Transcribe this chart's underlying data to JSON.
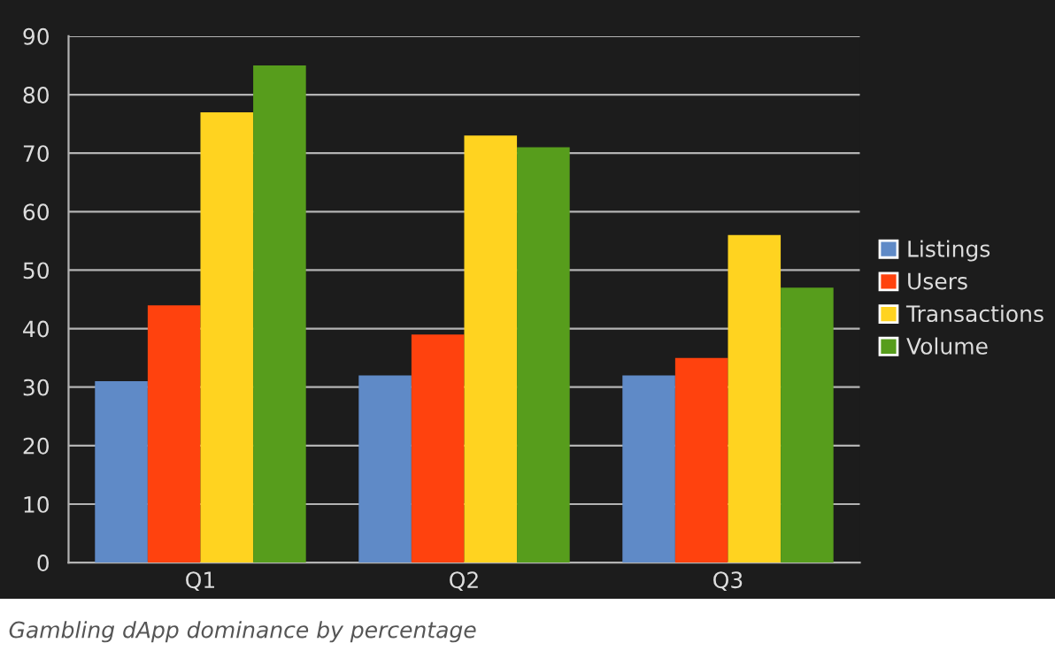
{
  "chart_data": {
    "type": "bar",
    "categories": [
      "Q1",
      "Q2",
      "Q3"
    ],
    "series": [
      {
        "name": "Listings",
        "color": "#5f8ac7",
        "values": [
          31,
          32,
          32
        ]
      },
      {
        "name": "Users",
        "color": "#ff420e",
        "values": [
          44,
          39,
          35
        ]
      },
      {
        "name": "Transactions",
        "color": "#ffd320",
        "values": [
          77,
          73,
          56
        ]
      },
      {
        "name": "Volume",
        "color": "#579d1c",
        "values": [
          85,
          71,
          47
        ]
      }
    ],
    "ylim": [
      0,
      90
    ],
    "yticks": [
      0,
      10,
      20,
      30,
      40,
      50,
      60,
      70,
      80,
      90
    ],
    "grid": "y",
    "legend": "right",
    "annotations": [
      "Gambling dApp dominance by percentage"
    ]
  }
}
